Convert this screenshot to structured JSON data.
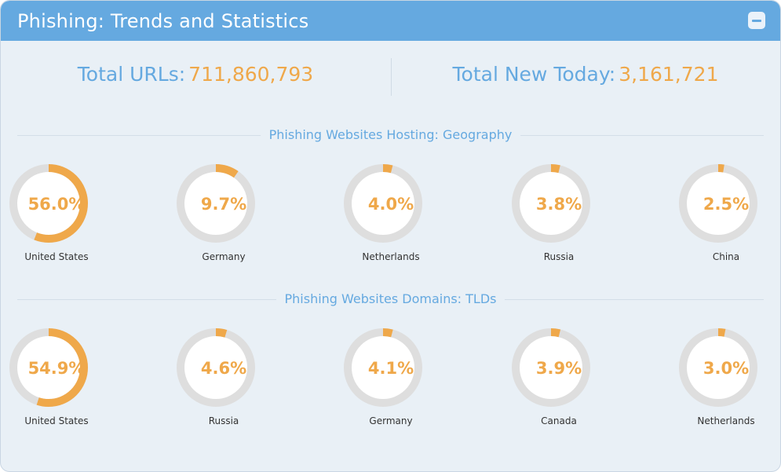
{
  "header": {
    "title": "Phishing: Trends and Statistics",
    "collapse_icon": "minus-icon"
  },
  "totals": {
    "urls_label": "Total URLs:",
    "urls_value": "711,860,793",
    "new_label": "Total New Today:",
    "new_value": "3,161,721"
  },
  "colors": {
    "accent": "#efa84a",
    "brand": "#65a9e0",
    "track": "#dedede"
  },
  "chart_data": [
    {
      "type": "pie",
      "title": "Phishing Websites Hosting: Geography",
      "categories": [
        "United States",
        "Germany",
        "Netherlands",
        "Russia",
        "China"
      ],
      "values": [
        56.0,
        9.7,
        4.0,
        3.8,
        2.5
      ],
      "labels": [
        "56.0%",
        "9.7%",
        "4.0%",
        "3.8%",
        "2.5%"
      ]
    },
    {
      "type": "pie",
      "title": "Phishing Websites Domains: TLDs",
      "categories": [
        "United States",
        "Russia",
        "Germany",
        "Canada",
        "Netherlands"
      ],
      "values": [
        54.9,
        4.6,
        4.1,
        3.9,
        3.0
      ],
      "labels": [
        "54.9%",
        "4.6%",
        "4.1%",
        "3.9%",
        "3.0%"
      ]
    }
  ]
}
